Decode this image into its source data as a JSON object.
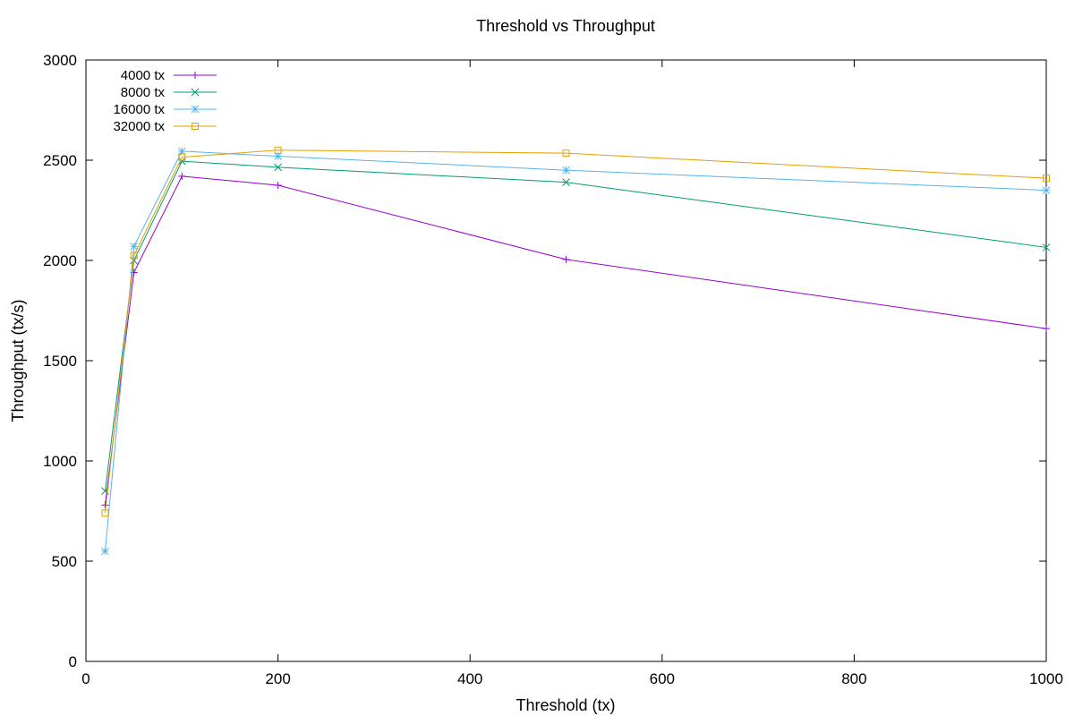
{
  "chart_data": {
    "type": "line",
    "title": "Threshold vs Throughput",
    "xlabel": "Threshold (tx)",
    "ylabel": "Throughput (tx/s)",
    "xlim": [
      0,
      1000
    ],
    "ylim": [
      0,
      3000
    ],
    "x_ticks": [
      0,
      200,
      400,
      600,
      800,
      1000
    ],
    "y_ticks": [
      0,
      500,
      1000,
      1500,
      2000,
      2500,
      3000
    ],
    "grid": false,
    "legend_position": "top-left",
    "series": [
      {
        "name": "4000 tx",
        "color": "#9400d3",
        "marker": "plus",
        "x": [
          20,
          50,
          100,
          200,
          500,
          1000
        ],
        "y": [
          780,
          1940,
          2420,
          2375,
          2005,
          1660
        ]
      },
      {
        "name": "8000 tx",
        "color": "#009e73",
        "marker": "cross",
        "x": [
          20,
          50,
          100,
          200,
          500,
          1000
        ],
        "y": [
          850,
          2000,
          2495,
          2465,
          2390,
          2065
        ]
      },
      {
        "name": "16000 tx",
        "color": "#56b4e9",
        "marker": "star",
        "x": [
          20,
          50,
          100,
          200,
          500,
          1000
        ],
        "y": [
          550,
          2070,
          2545,
          2520,
          2450,
          2350
        ]
      },
      {
        "name": "32000 tx",
        "color": "#e69f00",
        "marker": "square",
        "x": [
          20,
          50,
          100,
          200,
          500,
          1000
        ],
        "y": [
          740,
          2025,
          2515,
          2550,
          2535,
          2410
        ]
      }
    ]
  }
}
